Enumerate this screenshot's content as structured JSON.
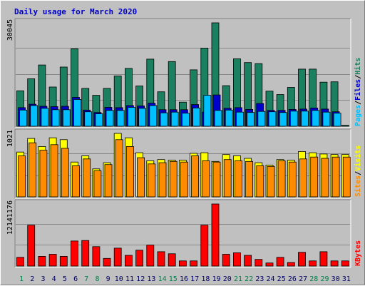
{
  "chart_data": {
    "type": "bar",
    "title": "Daily usage for March 2020",
    "categories": [
      "1",
      "2",
      "3",
      "4",
      "5",
      "6",
      "7",
      "8",
      "9",
      "10",
      "11",
      "12",
      "13",
      "14",
      "15",
      "16",
      "17",
      "18",
      "19",
      "20",
      "21",
      "22",
      "23",
      "24",
      "25",
      "26",
      "27",
      "28",
      "29",
      "30",
      "31"
    ],
    "weekend_days": [
      "1",
      "7",
      "8",
      "14",
      "15",
      "21",
      "22",
      "28",
      "29"
    ],
    "panels": [
      {
        "id": "hits",
        "max_label": "30045",
        "ymax": 30045,
        "side_labels": [
          "Pages",
          "/",
          "Files",
          "/",
          "Hits"
        ],
        "series": [
          {
            "name": "Hits",
            "color": "#1a8060",
            "values": [
              10300,
              13800,
              17800,
              11400,
              17200,
              22500,
              11000,
              9000,
              11000,
              14600,
              16800,
              11700,
              19500,
              10000,
              18800,
              7000,
              16400,
              22700,
              30045,
              11800,
              19600,
              18500,
              18200,
              10200,
              9200,
              11300,
              16600,
              16600,
              12800,
              12900,
              300
            ]
          },
          {
            "name": "Files",
            "color": "#0000cc",
            "values": [
              5400,
              6400,
              5800,
              5700,
              5800,
              8400,
              4700,
              4000,
              5500,
              5400,
              6000,
              5900,
              6700,
              4800,
              4800,
              4800,
              6300,
              4100,
              9100,
              5200,
              5400,
              4900,
              6600,
              4600,
              4600,
              4900,
              5000,
              5300,
              5000,
              4200,
              0
            ]
          },
          {
            "name": "Pages",
            "color": "#00bfff",
            "values": [
              4700,
              6000,
              5200,
              4800,
              4800,
              7800,
              4200,
              3600,
              4600,
              4600,
              5500,
              5200,
              6000,
              3900,
              4100,
              3800,
              5300,
              9000,
              4600,
              4700,
              4100,
              4000,
              4300,
              4200,
              4000,
              4400,
              4400,
              4600,
              4100,
              3800,
              0
            ]
          }
        ]
      },
      {
        "id": "visits",
        "max_label": "1021",
        "ymax": 1021,
        "side_labels": [
          "Sites",
          "/",
          "Visits"
        ],
        "series": [
          {
            "name": "Visits",
            "color": "#ffff00",
            "values": [
              720,
              940,
              810,
              950,
              920,
              560,
              660,
              450,
              550,
              1021,
              950,
              710,
              580,
              600,
              590,
              590,
              700,
              710,
              570,
              680,
              660,
              620,
              550,
              510,
              600,
              590,
              730,
              710,
              690,
              680,
              680
            ]
          },
          {
            "name": "Sites",
            "color": "#ff8c00",
            "values": [
              660,
              870,
              750,
              840,
              780,
              500,
              610,
              420,
              520,
              920,
              810,
              630,
              530,
              550,
              570,
              560,
              660,
              580,
              560,
              600,
              580,
              570,
              500,
              490,
              580,
              560,
              610,
              640,
              620,
              640,
              640
            ]
          }
        ]
      },
      {
        "id": "kbytes",
        "max_label": "12141176",
        "ymax": 12141176,
        "side_labels": [
          "KBytes"
        ],
        "series": [
          {
            "name": "KBytes",
            "color": "#ff0000",
            "values": [
              1700000,
              8000000,
              1900000,
              2300000,
              1900000,
              4900000,
              5000000,
              3800000,
              1500000,
              3500000,
              2100000,
              3100000,
              4100000,
              2800000,
              2400000,
              1000000,
              1000000,
              8000000,
              12141176,
              2300000,
              2600000,
              2100000,
              1300000,
              600000,
              1700000,
              700000,
              2700000,
              1000000,
              2800000,
              1000000,
              1000000
            ]
          }
        ]
      }
    ]
  }
}
